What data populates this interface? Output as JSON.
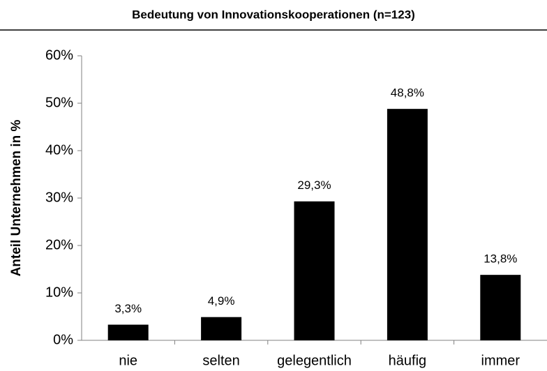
{
  "chart_data": {
    "type": "bar",
    "title": "Bedeutung von Innovationskooperationen (n=123)",
    "y_label": "Anteil Unternehmen in %",
    "categories": [
      "nie",
      "selten",
      "gelegentlich",
      "häufig",
      "immer"
    ],
    "values": [
      3.3,
      4.9,
      29.3,
      48.8,
      13.8
    ],
    "value_labels": [
      "3,3%",
      "4,9%",
      "29,3%",
      "48,8%",
      "13,8%"
    ],
    "color": "#000000",
    "ylim": [
      0,
      60
    ],
    "yticks": [
      {
        "value": 0,
        "label": "0%"
      },
      {
        "value": 10,
        "label": "10%"
      },
      {
        "value": 20,
        "label": "20%"
      },
      {
        "value": 30,
        "label": "30%"
      },
      {
        "value": 40,
        "label": "40%"
      },
      {
        "value": 50,
        "label": "50%"
      },
      {
        "value": 60,
        "label": "60%"
      }
    ],
    "grid": false
  }
}
